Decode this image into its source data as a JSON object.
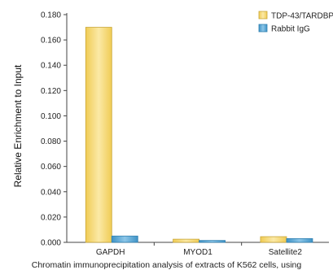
{
  "chart_data": {
    "type": "bar",
    "title": "",
    "xlabel": "",
    "ylabel": "Relative Enrichment to Input",
    "categories": [
      "GAPDH",
      "MYOD1",
      "Satellite2"
    ],
    "series": [
      {
        "name": "TDP-43/TARDBP",
        "values": [
          0.17,
          0.0025,
          0.0045
        ],
        "color": "#f5d870"
      },
      {
        "name": "Rabbit IgG",
        "values": [
          0.005,
          0.0015,
          0.003
        ],
        "color": "#5aa9d6"
      }
    ],
    "ylim": [
      0,
      0.18
    ],
    "yticks": [
      "0.000",
      "0.020",
      "0.040",
      "0.060",
      "0.080",
      "0.100",
      "0.120",
      "0.140",
      "0.160",
      "0.180"
    ],
    "legend_position": "top-right",
    "grid": false
  },
  "caption": "Chromatin immunoprecipitation analysis of extracts of K562 cells, using"
}
